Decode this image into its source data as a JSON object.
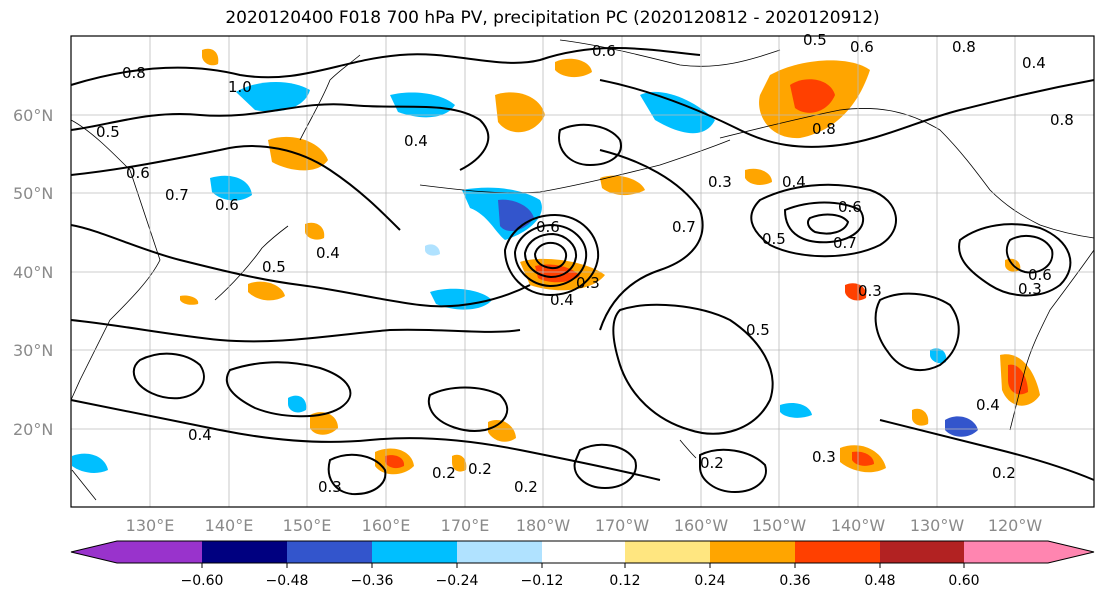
{
  "title": "2020120400 F018 700 hPa PV, precipitation PC (2020120812 - 2020120912)",
  "lat_labels": [
    "60°N",
    "50°N",
    "40°N",
    "30°N",
    "20°N"
  ],
  "lon_labels": [
    "130°E",
    "140°E",
    "150°E",
    "160°E",
    "170°E",
    "180°W",
    "170°W",
    "160°W",
    "150°W",
    "140°W",
    "130°W",
    "120°W"
  ],
  "colorbar": {
    "ticks": [
      "−0.60",
      "−0.48",
      "−0.36",
      "−0.24",
      "−0.12",
      "0.12",
      "0.24",
      "0.36",
      "0.48",
      "0.60"
    ],
    "colors": [
      "#9933cc",
      "#000080",
      "#3355cc",
      "#00bfff",
      "#b0e2ff",
      "#ffffff",
      "#ffe680",
      "#ffa500",
      "#ff4000",
      "#b22222",
      "#ff85b0"
    ]
  },
  "contour_labels": [
    "0.5",
    "0.7",
    "0.8",
    "1.0",
    "0.6",
    "0.4",
    "0.4",
    "0.6",
    "0.7",
    "0.5",
    "0.4",
    "0.5",
    "0.3",
    "0.4",
    "0.3",
    "0.2",
    "0.2",
    "0.2",
    "0.2",
    "0.3",
    "0.3",
    "0.4",
    "0.7",
    "0.6",
    "0.5",
    "0.3",
    "0.8",
    "0.6",
    "0.5",
    "0.8",
    "0.6",
    "0.4",
    "0.2",
    "0.6",
    "0.3",
    "0.6",
    "0.8",
    "0.4"
  ]
}
